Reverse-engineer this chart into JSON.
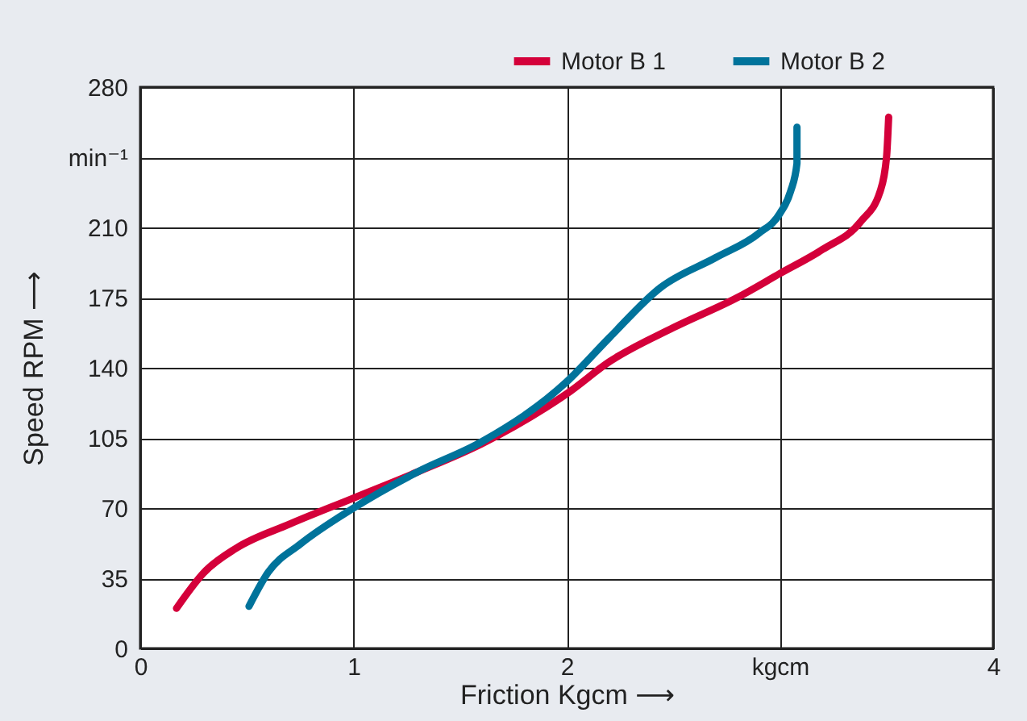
{
  "chart_data": {
    "type": "line",
    "xlabel": "Friction Kgcm ⟶",
    "ylabel": "Speed RPM ⟶",
    "xlim": [
      0,
      4
    ],
    "xticks": [
      0,
      1,
      2,
      {
        "value": 3,
        "label": "kgcm"
      },
      4
    ],
    "ylim": [
      0,
      280
    ],
    "yticks": [
      0,
      35,
      70,
      105,
      140,
      175,
      210,
      {
        "value": 245,
        "label": "min⁻¹"
      },
      280
    ],
    "grid": true,
    "legend": "top right",
    "marker": "none",
    "line_style": "solid",
    "series": [
      {
        "name": "Motor B 1",
        "color": "#d4003a",
        "x": [
          0.17,
          0.3,
          0.45,
          0.7,
          1.0,
          1.3,
          1.6,
          1.9,
          2.0,
          2.2,
          2.5,
          2.8,
          3.0,
          3.2,
          3.38,
          3.47,
          3.5,
          3.51
        ],
        "values": [
          20,
          38,
          50,
          62,
          75,
          88,
          102,
          120,
          127,
          143,
          160,
          175,
          187,
          199,
          213,
          228,
          245,
          265
        ]
      },
      {
        "name": "Motor B 2",
        "color": "#00739b",
        "x": [
          0.51,
          0.6,
          0.75,
          1.0,
          1.3,
          1.6,
          2.0,
          2.2,
          2.44,
          2.7,
          2.9,
          3.0,
          3.05,
          3.08,
          3.08
        ],
        "values": [
          21,
          38,
          52,
          70,
          88,
          103,
          133,
          155,
          180,
          195,
          207,
          217,
          228,
          242,
          260
        ]
      }
    ]
  }
}
